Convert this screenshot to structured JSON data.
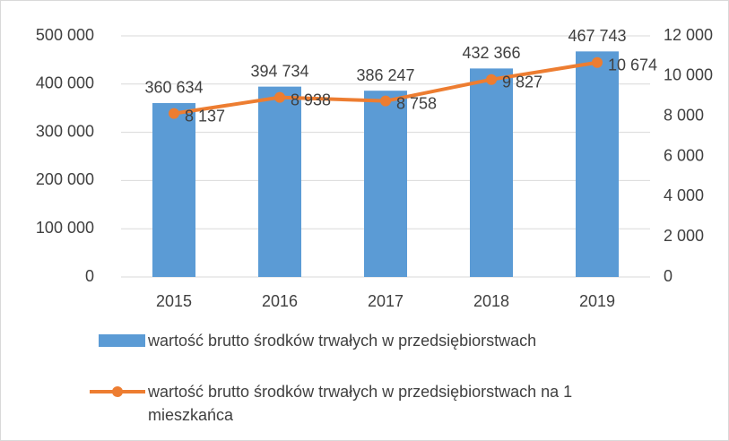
{
  "chart_data": {
    "type": "bar",
    "categories": [
      "2015",
      "2016",
      "2017",
      "2018",
      "2019"
    ],
    "series": [
      {
        "name": "wartość brutto środków trwałych w przedsiębiorstwach",
        "type": "bar",
        "color": "#5b9bd5",
        "values": [
          360634,
          394734,
          386247,
          432366,
          467743
        ],
        "value_labels": [
          "360 634",
          "394 734",
          "386 247",
          "432 366",
          "467 743"
        ]
      },
      {
        "name": "wartość brutto środków trwałych w przedsiębiorstwach na 1 mieszkańca",
        "type": "line",
        "color": "#ed7d31",
        "axis": "y2",
        "values": [
          8137,
          8938,
          8758,
          9827,
          10674
        ],
        "value_labels": [
          "8 137",
          "8 938",
          "8 758",
          "9 827",
          "10 674"
        ]
      }
    ],
    "ylim": [
      0,
      500000
    ],
    "yticks": [
      0,
      {
        "value": 100000,
        "label": "100 000"
      },
      {
        "value": 200000,
        "label": "200 000"
      },
      {
        "value": 300000,
        "label": "300 000"
      },
      {
        "value": 400000,
        "label": "400 000"
      },
      {
        "value": 500000,
        "label": "500 000"
      }
    ],
    "y2lim": [
      0,
      12000
    ],
    "y2ticks": [
      0,
      {
        "value": 2000,
        "label": "2 000"
      },
      {
        "value": 4000,
        "label": "4 000"
      },
      {
        "value": 6000,
        "label": "6 000"
      },
      {
        "value": 8000,
        "label": "8 000"
      },
      {
        "value": 10000,
        "label": "10 000"
      },
      {
        "value": 12000,
        "label": "12 000"
      }
    ],
    "grid": true
  }
}
